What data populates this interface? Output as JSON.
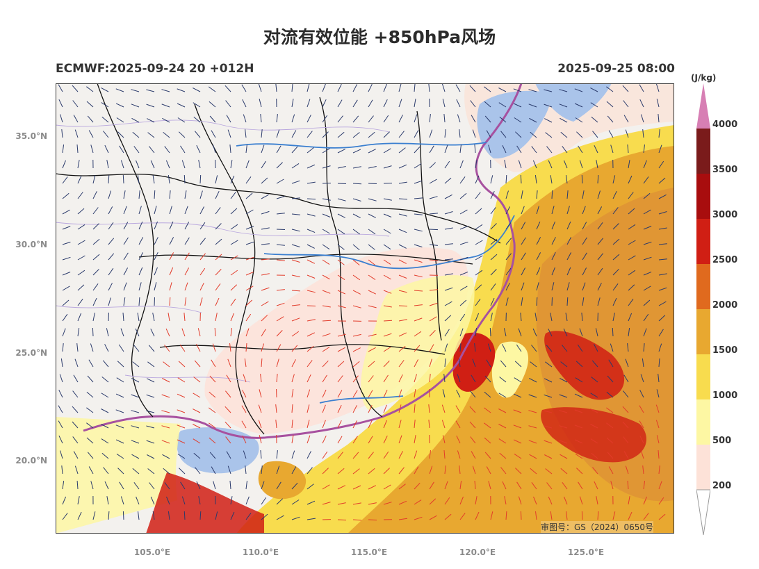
{
  "header": {
    "title": "对流有效位能 +850hPa风场",
    "model_run": "ECMWF:2025-09-24 20 +012H",
    "valid_time": "2025-09-25 08:00"
  },
  "map": {
    "lon_range": [
      100.5,
      129.0
    ],
    "lat_range": [
      16.7,
      37.5
    ],
    "lat_ticks": [
      "35.0°N",
      "30.0°N",
      "25.0°N",
      "20.0°N"
    ],
    "lon_ticks": [
      "105.0°E",
      "110.0°E",
      "115.0°E",
      "120.0°E",
      "125.0°E"
    ],
    "review_number": "审图号：GS（2024）0650号",
    "colors": {
      "land": "#f3f1ee",
      "sea": "#aac4ea",
      "borders": "#111111",
      "rivers": "#3a7fd0",
      "province_lines": "#b9a7de",
      "coastline": "#a7519f",
      "wind_barb_default": "#2a3a6b",
      "wind_barb_strong": "#e23b2a"
    }
  },
  "colorbar": {
    "unit": "(J/kg)",
    "levels": [
      "200",
      "500",
      "1000",
      "1500",
      "2000",
      "2500",
      "3000",
      "3500",
      "4000"
    ],
    "colors": [
      "#fde2d8",
      "#fdf7a3",
      "#f8dc4e",
      "#e8a830",
      "#e06a1e",
      "#d01f14",
      "#a80d0e",
      "#7a1b1b",
      "#d77fb4"
    ]
  }
}
